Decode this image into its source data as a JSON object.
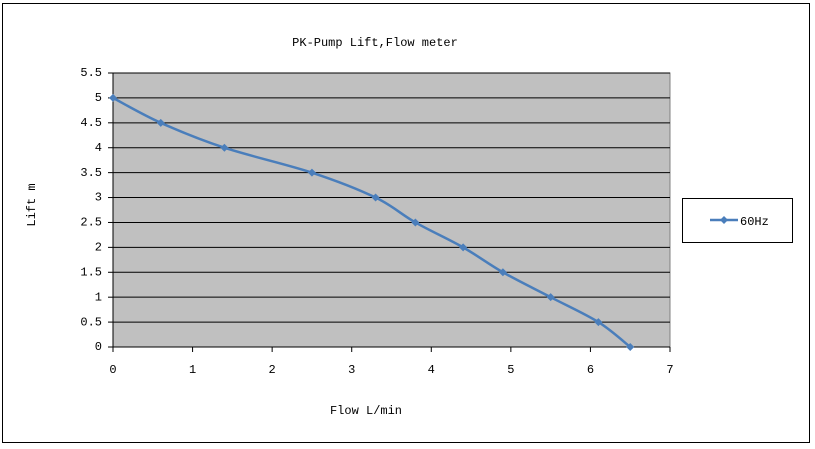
{
  "chart_data": {
    "type": "line",
    "title": "PK-Pump Lift,Flow meter",
    "x_label": "Flow L/min",
    "y_label": "Lift m",
    "x": [
      0,
      0.6,
      1.4,
      2.5,
      3.3,
      3.8,
      4.4,
      4.9,
      5.5,
      6.1,
      6.5
    ],
    "series": [
      {
        "name": "60Hz",
        "color": "#4a7ebb",
        "values": [
          5,
          4.5,
          4,
          3.5,
          3,
          2.5,
          2,
          1.5,
          1,
          0.5,
          0
        ]
      }
    ],
    "xlim": [
      0,
      7
    ],
    "xticks": [
      0,
      1,
      2,
      3,
      4,
      5,
      6,
      7
    ],
    "ylim": [
      0,
      5.5
    ],
    "yticks": [
      0,
      0.5,
      1,
      1.5,
      2,
      2.5,
      3,
      3.5,
      4,
      4.5,
      5,
      5.5
    ],
    "grid": true,
    "legend": "right",
    "plot_background": "#c0c0c0"
  }
}
